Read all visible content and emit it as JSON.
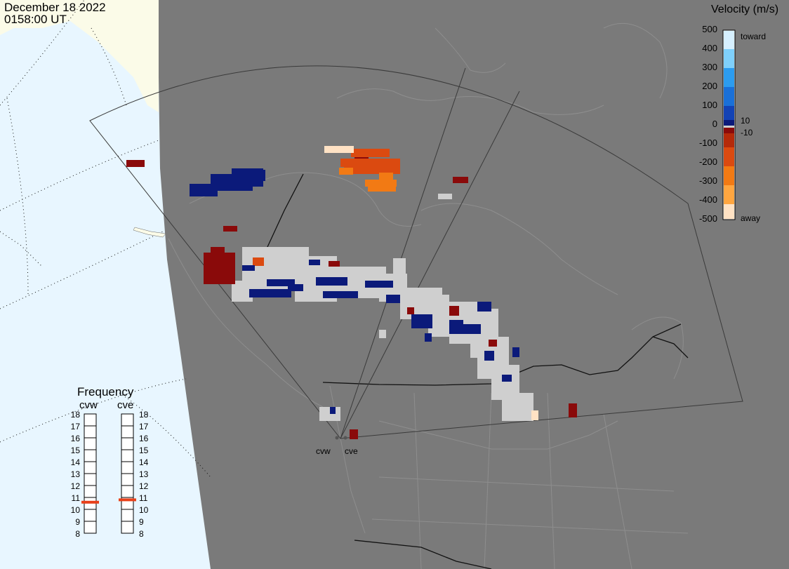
{
  "header": {
    "date": "December 18 2022",
    "time": "0158:00 UT"
  },
  "colorbar": {
    "title": "Velocity (m/s)",
    "ticks": [
      "500",
      "400",
      "300",
      "200",
      "100",
      "0",
      "-100",
      "-200",
      "-300",
      "-400",
      "-500"
    ],
    "label_pos": "10",
    "label_neg": "-10",
    "toward_label": "toward",
    "away_label": "away",
    "toward_colors": [
      "#0b1a7a",
      "#1343b5",
      "#1a70d8",
      "#2c9cef",
      "#7fd0fb",
      "#d6f0ff"
    ],
    "away_colors": [
      "#8a0a0a",
      "#b52a0a",
      "#db4a10",
      "#f27a14",
      "#ffa640",
      "#ffe2c4"
    ]
  },
  "frequency": {
    "title": "Frequency",
    "radars": [
      "cvw",
      "cve"
    ],
    "scale": [
      "18",
      "17",
      "16",
      "15",
      "14",
      "13",
      "12",
      "11",
      "10",
      "9",
      "8"
    ],
    "cvw_mhz": 10.6,
    "cve_mhz": 10.8,
    "marker_color": "#e8401a"
  },
  "sites": {
    "cvw": "cvw",
    "cve": "cve"
  },
  "map_colors": {
    "land": "#7a7a7a",
    "ocean": "#e8f6ff",
    "sunlit_land": "#fbfbe8",
    "low_velocity": "#cfcfcf"
  }
}
